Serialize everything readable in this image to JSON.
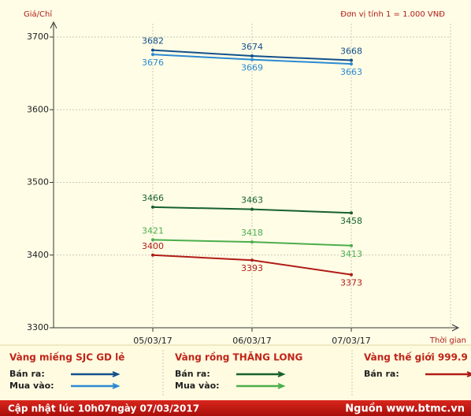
{
  "chart_data": {
    "type": "line",
    "y_label": "Giá/Chỉ",
    "unit_note": "Đơn vị tính 1 = 1.000 VNĐ",
    "x_label": "Thời gian",
    "categories": [
      "05/03/17",
      "06/03/17",
      "07/03/17"
    ],
    "ylim": [
      3300,
      3700
    ],
    "yticks": [
      3300,
      3400,
      3500,
      3600,
      3700
    ],
    "grid": true,
    "groups": [
      {
        "title": "Vàng miếng SJC GD lẻ",
        "series": [
          {
            "name": "Bán ra:",
            "color": "#13508c",
            "values": [
              3682,
              3674,
              3668
            ]
          },
          {
            "name": "Mua vào:",
            "color": "#2b8ad2",
            "values": [
              3676,
              3669,
              3663
            ]
          }
        ]
      },
      {
        "title": "Vàng rồng THĂNG LONG",
        "series": [
          {
            "name": "Bán ra:",
            "color": "#16602c",
            "values": [
              3466,
              3463,
              3458
            ]
          },
          {
            "name": "Mua vào:",
            "color": "#4cae4c",
            "values": [
              3421,
              3418,
              3413
            ]
          }
        ]
      },
      {
        "title": "Vàng thế giới 999.9",
        "series": [
          {
            "name": "Bán ra:",
            "color": "#b01c16",
            "values": [
              3400,
              3393,
              3373
            ]
          }
        ]
      }
    ]
  },
  "footer": {
    "updated": "Cập nhật lúc 10h07ngày 07/03/2017",
    "source": "Nguồn www.btmc.vn"
  }
}
